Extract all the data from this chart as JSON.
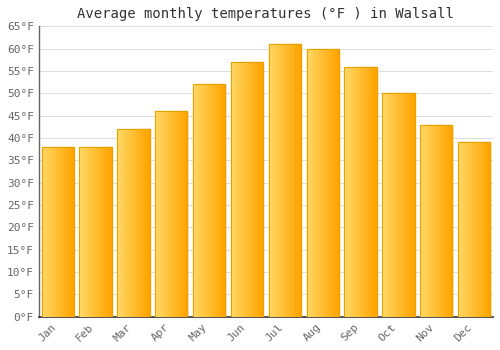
{
  "title": "Average monthly temperatures (°F ) in Walsall",
  "months": [
    "Jan",
    "Feb",
    "Mar",
    "Apr",
    "May",
    "Jun",
    "Jul",
    "Aug",
    "Sep",
    "Oct",
    "Nov",
    "Dec"
  ],
  "values": [
    38,
    38,
    42,
    46,
    52,
    57,
    61,
    60,
    56,
    50,
    43,
    39
  ],
  "bar_color_left": "#FFD966",
  "bar_color_right": "#FFA500",
  "bar_edge_color": "#E8A000",
  "ylim": [
    0,
    65
  ],
  "yticks": [
    0,
    5,
    10,
    15,
    20,
    25,
    30,
    35,
    40,
    45,
    50,
    55,
    60,
    65
  ],
  "ytick_labels": [
    "0°F",
    "5°F",
    "10°F",
    "15°F",
    "20°F",
    "25°F",
    "30°F",
    "35°F",
    "40°F",
    "45°F",
    "50°F",
    "55°F",
    "60°F",
    "65°F"
  ],
  "background_color": "#ffffff",
  "grid_color": "#dddddd",
  "title_fontsize": 10,
  "tick_fontsize": 8,
  "font_family": "monospace",
  "bar_width": 0.85,
  "n_gradient_steps": 50
}
